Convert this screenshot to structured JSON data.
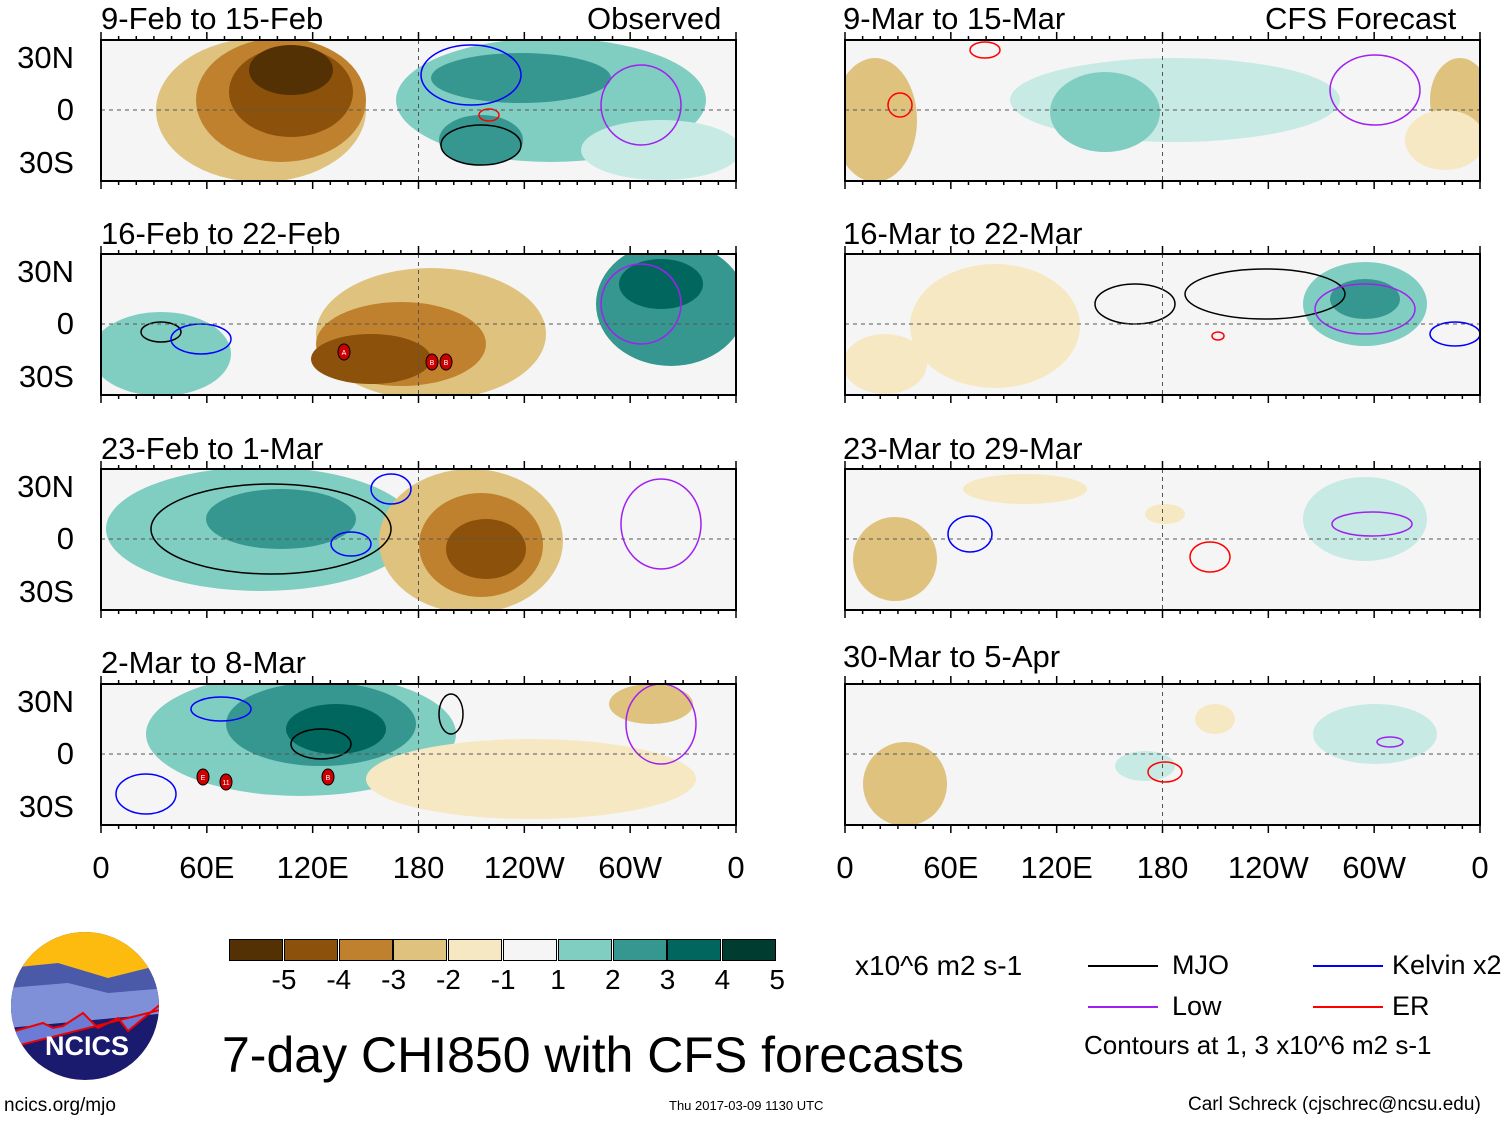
{
  "observed_label": "Observed",
  "forecast_label": "CFS Forecast",
  "chart_data": {
    "type": "heatmap",
    "title": "7-day CHI850 with CFS forecasts",
    "units": "x10^6 m2 s-1",
    "lat_ticks": [
      "30N",
      "0",
      "30S"
    ],
    "lon_ticks": [
      "0",
      "60E",
      "120E",
      "180",
      "120W",
      "60W",
      "0"
    ],
    "panels_observed": [
      "9-Feb to 15-Feb",
      "16-Feb to 22-Feb",
      "23-Feb to 1-Mar",
      "2-Mar to 8-Mar"
    ],
    "panels_forecast": [
      "9-Mar to 15-Mar",
      "16-Mar to 22-Mar",
      "23-Mar to 29-Mar",
      "30-Mar to 5-Apr"
    ],
    "colorbar_levels": [
      "-5",
      "-4",
      "-3",
      "-2",
      "-1",
      "1",
      "2",
      "3",
      "4",
      "5"
    ],
    "colorbar_colors": [
      "#543005",
      "#8c510a",
      "#bf812d",
      "#dfc27d",
      "#f6e8c3",
      "#f5f5f5",
      "#c7eae5",
      "#80cdc1",
      "#35978f",
      "#01665e",
      "#003c30"
    ],
    "legend": [
      {
        "label": "MJO",
        "color": "#000000"
      },
      {
        "label": "Kelvin x2",
        "color": "#0000ff"
      },
      {
        "label": "Low",
        "color": "#a020f0"
      },
      {
        "label": "ER",
        "color": "#ff0000"
      }
    ],
    "contour_note": "Contours at 1, 3 x10^6 m2 s-1",
    "tc_markers": [
      "A",
      "B",
      "B",
      "E",
      "11",
      "B"
    ]
  },
  "footer": {
    "url": "ncics.org/mjo",
    "timestamp": "Thu 2017-03-09 1130 UTC",
    "author": "Carl Schreck (cjschrec@ncsu.edu)",
    "logo_text": "NCICS"
  }
}
